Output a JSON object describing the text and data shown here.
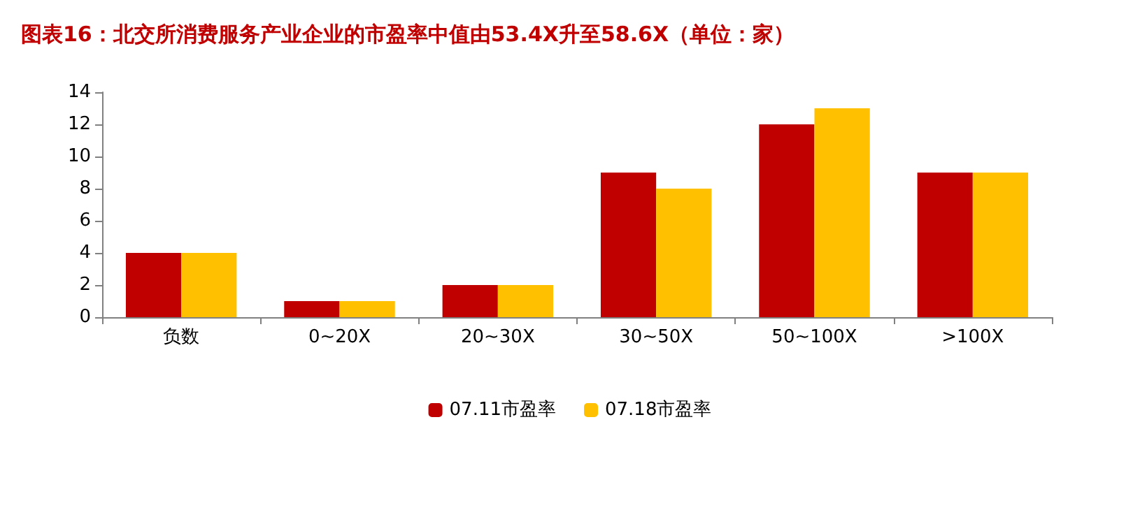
{
  "chart_data": {
    "type": "bar",
    "title": "图表16：北交所消费服务产业企业的市盈率中值由53.4X升至58.6X（单位：家）",
    "categories": [
      "负数",
      "0~20X",
      "20~30X",
      "30~50X",
      "50~100X",
      ">100X"
    ],
    "series": [
      {
        "name": "07.11市盈率",
        "color": "#c00000",
        "values": [
          4,
          1,
          2,
          9,
          12,
          9
        ]
      },
      {
        "name": "07.18市盈率",
        "color": "#ffc000",
        "values": [
          4,
          1,
          2,
          8,
          13,
          9
        ]
      }
    ],
    "ylim": [
      0,
      14
    ],
    "yticks": [
      0,
      2,
      4,
      6,
      8,
      10,
      12,
      14
    ],
    "grid": false,
    "legend": "bottom"
  }
}
